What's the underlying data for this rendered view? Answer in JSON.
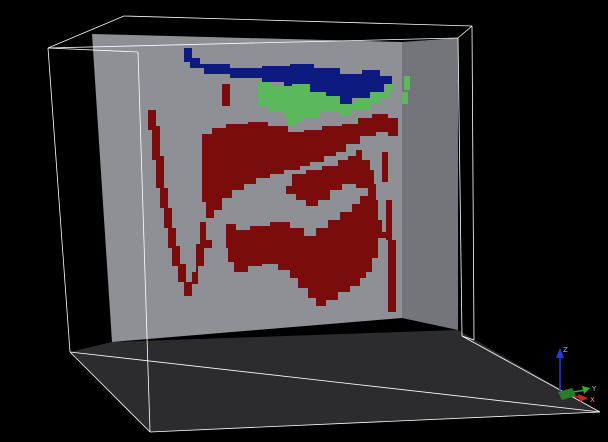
{
  "viewer": {
    "background_color": "#000000",
    "bounding_box_color": "#ffffff",
    "back_wall_color": "#8e9096",
    "side_wall_color": "#73757a",
    "floor_color": "#2c2c2e"
  },
  "model": {
    "layers": [
      {
        "id": "layer-blue",
        "color": "#0d1a80"
      },
      {
        "id": "layer-green",
        "color": "#5cb85c"
      },
      {
        "id": "layer-red",
        "color": "#7a0c0c"
      }
    ]
  },
  "orientation_axes": {
    "z_label": "Z",
    "y_label": "Y",
    "x_label": "X",
    "z_color": "#2040d8",
    "y_color": "#30b030",
    "x_color": "#d82020"
  }
}
